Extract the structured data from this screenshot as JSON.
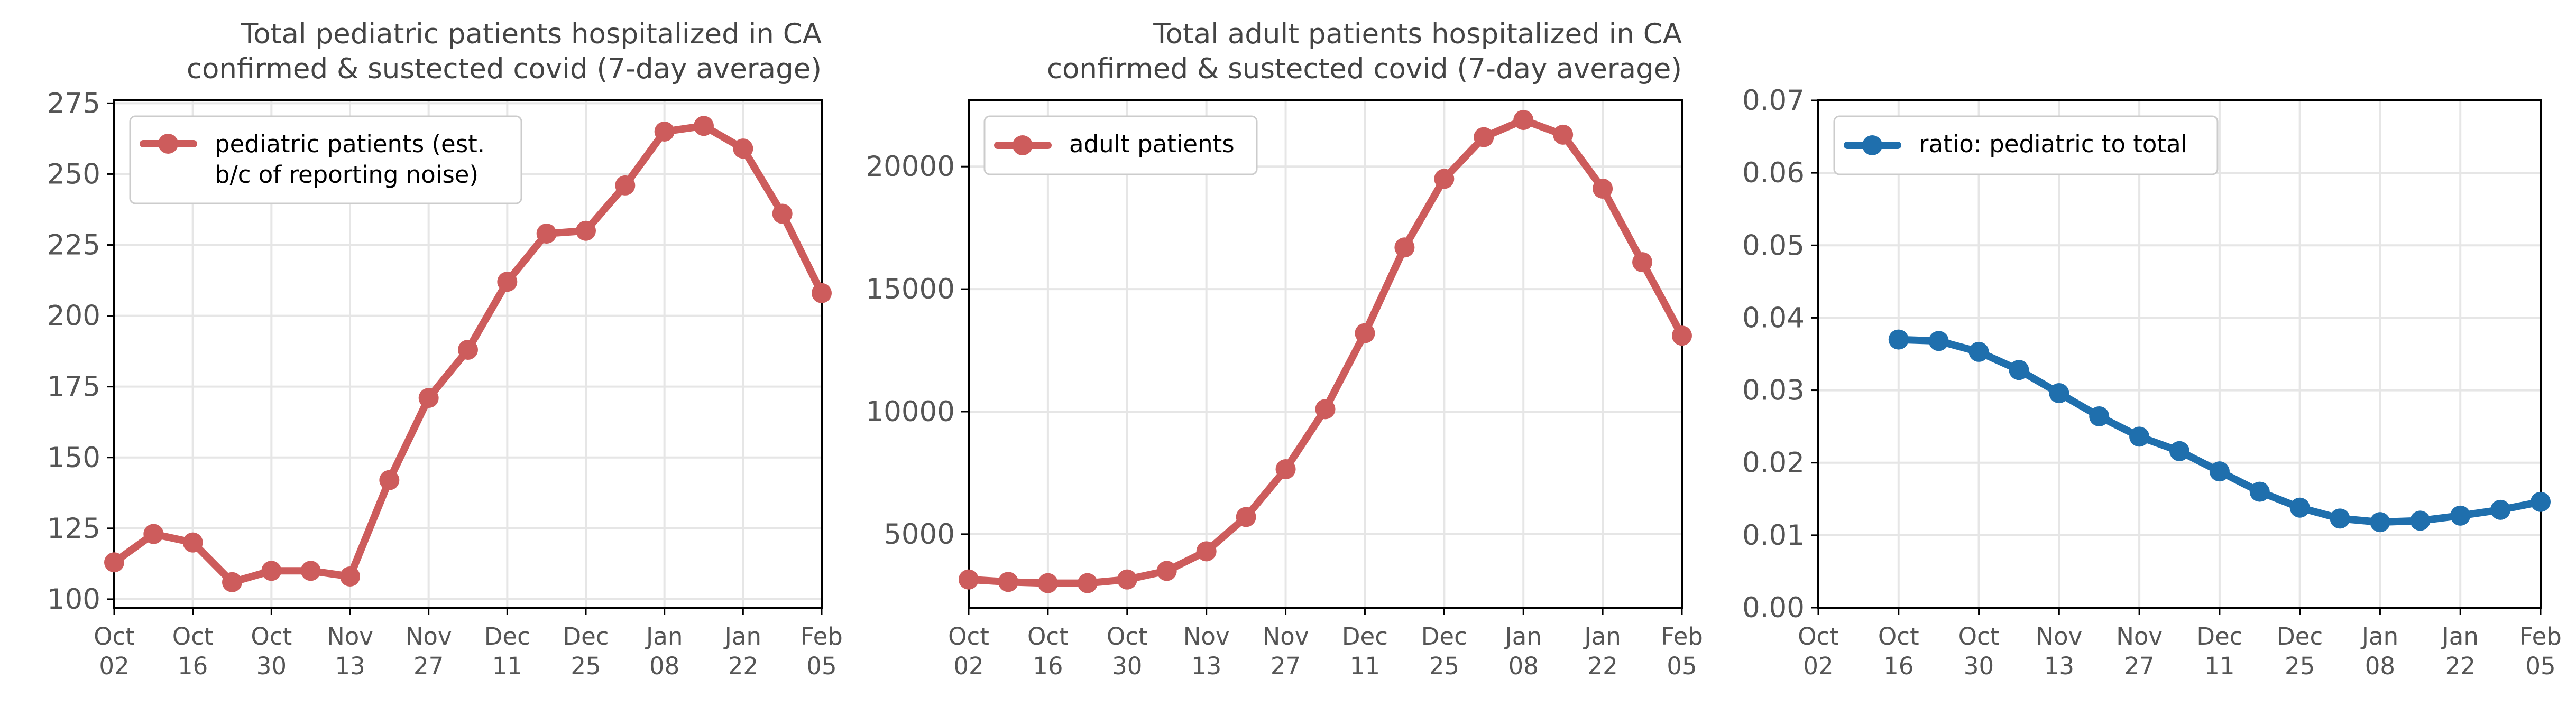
{
  "x_dates": [
    "Oct 02",
    "Oct 09",
    "Oct 16",
    "Oct 23",
    "Oct 30",
    "Nov 06",
    "Nov 13",
    "Nov 20",
    "Nov 27",
    "Dec 04",
    "Dec 11",
    "Dec 18",
    "Dec 25",
    "Jan 01",
    "Jan 08",
    "Jan 15",
    "Jan 22",
    "Jan 29",
    "Feb 05"
  ],
  "chart_data": [
    {
      "type": "line",
      "title": "Total pediatric patients hospitalized in CA\nconfirmed & sustected covid (7-day average)",
      "xlabel": "",
      "ylabel": "",
      "ylim": [
        97,
        276
      ],
      "yticks": [
        100,
        125,
        150,
        175,
        200,
        225,
        250,
        275
      ],
      "xticks": [
        "Oct\n02",
        "Oct\n16",
        "Oct\n30",
        "Nov\n13",
        "Nov\n27",
        "Dec\n11",
        "Dec\n25",
        "Jan\n08",
        "Jan\n22",
        "Feb\n05"
      ],
      "grid": true,
      "legend": "upper-left",
      "color": "#cd5c5c",
      "series": [
        {
          "name": "pediatric patients (est.\nb/c of reporting noise)",
          "x": [
            "Oct 02",
            "Oct 09",
            "Oct 16",
            "Oct 23",
            "Oct 30",
            "Nov 06",
            "Nov 13",
            "Nov 20",
            "Nov 27",
            "Dec 04",
            "Dec 11",
            "Dec 18",
            "Dec 25",
            "Jan 01",
            "Jan 08",
            "Jan 15",
            "Jan 22",
            "Jan 29",
            "Feb 05"
          ],
          "values": [
            113,
            123,
            120,
            106,
            110,
            110,
            108,
            142,
            171,
            188,
            212,
            229,
            230,
            246,
            265,
            267,
            259,
            236,
            208
          ]
        }
      ]
    },
    {
      "type": "line",
      "title": "Total adult patients hospitalized in CA\nconfirmed & sustected covid (7-day average)",
      "xlabel": "",
      "ylabel": "",
      "ylim": [
        2000,
        22700
      ],
      "yticks": [
        5000,
        10000,
        15000,
        20000
      ],
      "xticks": [
        "Oct\n02",
        "Oct\n16",
        "Oct\n30",
        "Nov\n13",
        "Nov\n27",
        "Dec\n11",
        "Dec\n25",
        "Jan\n08",
        "Jan\n22",
        "Feb\n05"
      ],
      "grid": true,
      "legend": "upper-left",
      "color": "#cd5c5c",
      "series": [
        {
          "name": "adult patients",
          "x": [
            "Oct 02",
            "Oct 09",
            "Oct 16",
            "Oct 23",
            "Oct 30",
            "Nov 06",
            "Nov 13",
            "Nov 20",
            "Nov 27",
            "Dec 04",
            "Dec 11",
            "Dec 18",
            "Dec 25",
            "Jan 01",
            "Jan 08",
            "Jan 15",
            "Jan 22",
            "Jan 29",
            "Feb 05"
          ],
          "values": [
            3150,
            3050,
            3000,
            3000,
            3150,
            3500,
            4300,
            5700,
            7650,
            10100,
            13200,
            16700,
            19500,
            21200,
            21900,
            21300,
            19100,
            16100,
            13100
          ]
        }
      ]
    },
    {
      "type": "line",
      "title": "",
      "xlabel": "",
      "ylabel": "",
      "ylim": [
        0,
        0.07
      ],
      "yticks": [
        0.0,
        0.01,
        0.02,
        0.03,
        0.04,
        0.05,
        0.06,
        0.07
      ],
      "ytick_labels": [
        "0.00",
        "0.01",
        "0.02",
        "0.03",
        "0.04",
        "0.05",
        "0.06",
        "0.07"
      ],
      "xticks": [
        "Oct\n02",
        "Oct\n16",
        "Oct\n30",
        "Nov\n13",
        "Nov\n27",
        "Dec\n11",
        "Dec\n25",
        "Jan\n08",
        "Jan\n22",
        "Feb\n05"
      ],
      "grid": true,
      "legend": "upper-left",
      "color": "#1f6fad",
      "series": [
        {
          "name": "ratio: pediatric to total",
          "x": [
            "Oct 16",
            "Oct 23",
            "Oct 30",
            "Nov 06",
            "Nov 13",
            "Nov 20",
            "Nov 27",
            "Dec 04",
            "Dec 11",
            "Dec 18",
            "Dec 25",
            "Jan 01",
            "Jan 08",
            "Jan 15",
            "Jan 22",
            "Jan 29",
            "Feb 05"
          ],
          "values": [
            0.037,
            0.0368,
            0.0353,
            0.0328,
            0.0296,
            0.0264,
            0.0236,
            0.0216,
            0.0188,
            0.016,
            0.0138,
            0.0123,
            0.0118,
            0.012,
            0.0127,
            0.0135,
            0.0146
          ]
        }
      ]
    }
  ]
}
